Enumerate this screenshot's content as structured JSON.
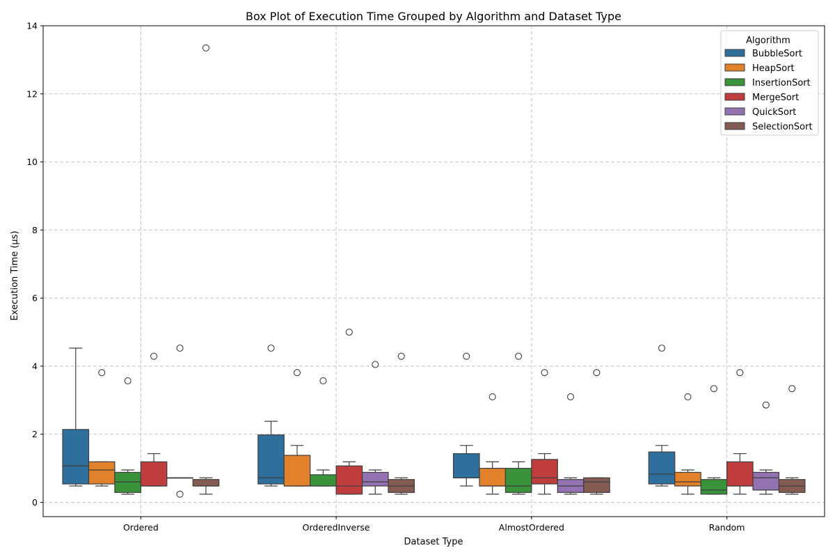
{
  "chart_data": {
    "type": "box",
    "title": "Box Plot of Execution Time Grouped by Algorithm and Dataset Type",
    "xlabel": "Dataset Type",
    "ylabel": "Execution Time (µs)",
    "ylim": [
      -0.42,
      14
    ],
    "yticks": [
      0,
      2,
      4,
      6,
      8,
      10,
      12,
      14
    ],
    "grid": true,
    "legend": {
      "title": "Algorithm",
      "placement": "top-right"
    },
    "categories": [
      "Ordered",
      "OrderedInverse",
      "AlmostOrdered",
      "Random"
    ],
    "series": [
      {
        "name": "BubbleSort",
        "color": "#2e6f9e",
        "boxes": [
          {
            "whislo": 0.48,
            "q1": 0.54,
            "med": 1.07,
            "q3": 2.14,
            "whishi": 4.53,
            "fliers": []
          },
          {
            "whislo": 0.48,
            "q1": 0.54,
            "med": 0.72,
            "q3": 1.98,
            "whishi": 2.38,
            "fliers": [
              4.53
            ]
          },
          {
            "whislo": 0.48,
            "q1": 0.72,
            "med": 0.72,
            "q3": 1.43,
            "whishi": 1.67,
            "fliers": [
              4.29
            ]
          },
          {
            "whislo": 0.48,
            "q1": 0.54,
            "med": 0.83,
            "q3": 1.48,
            "whishi": 1.67,
            "fliers": [
              4.53
            ]
          }
        ]
      },
      {
        "name": "HeapSort",
        "color": "#e1812c",
        "boxes": [
          {
            "whislo": 0.48,
            "q1": 0.54,
            "med": 0.95,
            "q3": 1.19,
            "whishi": 1.19,
            "fliers": [
              3.81
            ]
          },
          {
            "whislo": 0.48,
            "q1": 0.48,
            "med": 0.48,
            "q3": 1.38,
            "whishi": 1.67,
            "fliers": [
              3.81
            ]
          },
          {
            "whislo": 0.24,
            "q1": 0.48,
            "med": 0.48,
            "q3": 1.0,
            "whishi": 1.19,
            "fliers": [
              3.1
            ]
          },
          {
            "whislo": 0.24,
            "q1": 0.48,
            "med": 0.6,
            "q3": 0.88,
            "whishi": 0.95,
            "fliers": [
              3.1
            ]
          }
        ]
      },
      {
        "name": "InsertionSort",
        "color": "#3a923a",
        "boxes": [
          {
            "whislo": 0.24,
            "q1": 0.29,
            "med": 0.6,
            "q3": 0.88,
            "whishi": 0.95,
            "fliers": [
              3.57
            ]
          },
          {
            "whislo": 0.48,
            "q1": 0.48,
            "med": 0.48,
            "q3": 0.81,
            "whishi": 0.95,
            "fliers": [
              3.57
            ]
          },
          {
            "whislo": 0.24,
            "q1": 0.29,
            "med": 0.48,
            "q3": 1.0,
            "whishi": 1.19,
            "fliers": [
              4.29
            ]
          },
          {
            "whislo": 0.24,
            "q1": 0.24,
            "med": 0.36,
            "q3": 0.67,
            "whishi": 0.72,
            "fliers": [
              3.34
            ]
          }
        ]
      },
      {
        "name": "MergeSort",
        "color": "#c03d3e",
        "boxes": [
          {
            "whislo": 0.48,
            "q1": 0.48,
            "med": 0.48,
            "q3": 1.19,
            "whishi": 1.43,
            "fliers": [
              4.29
            ]
          },
          {
            "whislo": 0.24,
            "q1": 0.24,
            "med": 0.48,
            "q3": 1.07,
            "whishi": 1.19,
            "fliers": [
              5.0
            ]
          },
          {
            "whislo": 0.24,
            "q1": 0.54,
            "med": 0.72,
            "q3": 1.26,
            "whishi": 1.43,
            "fliers": [
              3.81
            ]
          },
          {
            "whislo": 0.24,
            "q1": 0.48,
            "med": 0.48,
            "q3": 1.19,
            "whishi": 1.43,
            "fliers": [
              3.81
            ]
          }
        ]
      },
      {
        "name": "QuickSort",
        "color": "#9372b2",
        "boxes": [
          {
            "whislo": 0.72,
            "q1": 0.72,
            "med": 0.72,
            "q3": 0.72,
            "whishi": 0.72,
            "fliers": [
              4.53,
              0.24
            ]
          },
          {
            "whislo": 0.24,
            "q1": 0.48,
            "med": 0.6,
            "q3": 0.88,
            "whishi": 0.95,
            "fliers": [
              4.05
            ]
          },
          {
            "whislo": 0.24,
            "q1": 0.29,
            "med": 0.48,
            "q3": 0.67,
            "whishi": 0.72,
            "fliers": [
              3.1
            ]
          },
          {
            "whislo": 0.24,
            "q1": 0.36,
            "med": 0.72,
            "q3": 0.88,
            "whishi": 0.95,
            "fliers": [
              2.86
            ]
          }
        ]
      },
      {
        "name": "SelectionSort",
        "color": "#845b53",
        "boxes": [
          {
            "whislo": 0.24,
            "q1": 0.48,
            "med": 0.48,
            "q3": 0.67,
            "whishi": 0.72,
            "fliers": [
              13.35
            ]
          },
          {
            "whislo": 0.24,
            "q1": 0.29,
            "med": 0.48,
            "q3": 0.67,
            "whishi": 0.72,
            "fliers": [
              4.29
            ]
          },
          {
            "whislo": 0.24,
            "q1": 0.29,
            "med": 0.6,
            "q3": 0.72,
            "whishi": 0.72,
            "fliers": [
              3.81
            ]
          },
          {
            "whislo": 0.24,
            "q1": 0.29,
            "med": 0.48,
            "q3": 0.67,
            "whishi": 0.72,
            "fliers": [
              3.34
            ]
          }
        ]
      }
    ]
  }
}
